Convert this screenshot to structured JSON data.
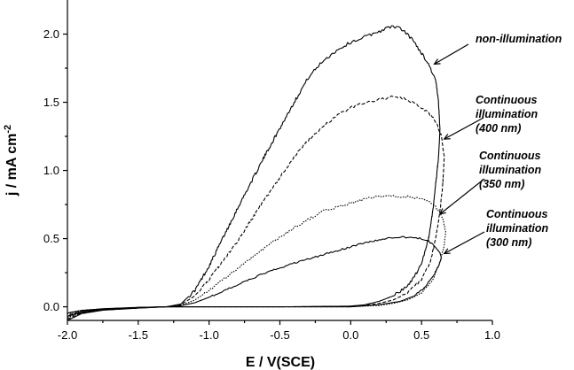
{
  "chart_data": {
    "type": "line",
    "title": "",
    "xlabel": "E / V(SCE)",
    "ylabel": "j / mA cm",
    "ylabel_superscript": "-2",
    "xlim": [
      -2.0,
      1.0
    ],
    "ylim": [
      -0.1,
      2.25
    ],
    "x_ticks": [
      -2.0,
      -1.5,
      -1.0,
      -0.5,
      0.0,
      0.5,
      1.0
    ],
    "x_tick_labels": [
      "-2.0",
      "-1.5",
      "-1.0",
      "-0.5",
      "0.0",
      "0.5",
      "1.0"
    ],
    "y_ticks": [
      0.0,
      0.5,
      1.0,
      1.5,
      2.0
    ],
    "y_tick_labels": [
      "0.0",
      "0.5",
      "1.0",
      "1.5",
      "2.0"
    ],
    "grid": false,
    "series": [
      {
        "name": "non-illumination",
        "dash": "solid",
        "noise": 0.012,
        "points": [
          [
            -2.0,
            -0.1
          ],
          [
            -1.9,
            -0.05
          ],
          [
            -1.75,
            -0.025
          ],
          [
            -1.5,
            -0.01
          ],
          [
            -1.3,
            0.0
          ],
          [
            -1.2,
            0.02
          ],
          [
            -1.1,
            0.12
          ],
          [
            -1.0,
            0.3
          ],
          [
            -0.8,
            0.72
          ],
          [
            -0.6,
            1.12
          ],
          [
            -0.4,
            1.5
          ],
          [
            -0.3,
            1.68
          ],
          [
            -0.2,
            1.8
          ],
          [
            -0.1,
            1.88
          ],
          [
            0.0,
            1.94
          ],
          [
            0.1,
            1.98
          ],
          [
            0.2,
            2.02
          ],
          [
            0.3,
            2.06
          ],
          [
            0.35,
            2.04
          ],
          [
            0.4,
            2.0
          ],
          [
            0.45,
            1.94
          ],
          [
            0.5,
            1.86
          ],
          [
            0.55,
            1.78
          ],
          [
            0.6,
            1.66
          ],
          [
            0.62,
            1.5
          ],
          [
            0.63,
            1.3
          ],
          [
            0.62,
            1.1
          ],
          [
            0.6,
            0.9
          ],
          [
            0.58,
            0.7
          ],
          [
            0.55,
            0.5
          ],
          [
            0.5,
            0.32
          ],
          [
            0.45,
            0.22
          ],
          [
            0.4,
            0.15
          ],
          [
            0.3,
            0.08
          ],
          [
            0.2,
            0.04
          ],
          [
            0.1,
            0.015
          ],
          [
            0.0,
            0.005
          ],
          [
            -0.5,
            0.0
          ],
          [
            -1.0,
            0.0
          ],
          [
            -1.3,
            0.0
          ],
          [
            -1.5,
            -0.005
          ],
          [
            -1.75,
            -0.02
          ],
          [
            -1.9,
            -0.04
          ],
          [
            -2.0,
            -0.07
          ]
        ]
      },
      {
        "name": "Continuous illumination (400 nm)",
        "dash": "4,2",
        "noise": 0.01,
        "points": [
          [
            -2.0,
            -0.09
          ],
          [
            -1.9,
            -0.045
          ],
          [
            -1.75,
            -0.022
          ],
          [
            -1.5,
            -0.008
          ],
          [
            -1.3,
            0.0
          ],
          [
            -1.2,
            0.015
          ],
          [
            -1.1,
            0.08
          ],
          [
            -1.0,
            0.2
          ],
          [
            -0.8,
            0.48
          ],
          [
            -0.6,
            0.8
          ],
          [
            -0.4,
            1.1
          ],
          [
            -0.3,
            1.22
          ],
          [
            -0.2,
            1.32
          ],
          [
            -0.1,
            1.4
          ],
          [
            0.0,
            1.46
          ],
          [
            0.1,
            1.5
          ],
          [
            0.2,
            1.52
          ],
          [
            0.3,
            1.54
          ],
          [
            0.4,
            1.52
          ],
          [
            0.5,
            1.46
          ],
          [
            0.55,
            1.42
          ],
          [
            0.6,
            1.36
          ],
          [
            0.64,
            1.25
          ],
          [
            0.66,
            1.1
          ],
          [
            0.65,
            0.9
          ],
          [
            0.63,
            0.7
          ],
          [
            0.6,
            0.5
          ],
          [
            0.56,
            0.32
          ],
          [
            0.5,
            0.2
          ],
          [
            0.4,
            0.1
          ],
          [
            0.3,
            0.05
          ],
          [
            0.2,
            0.025
          ],
          [
            0.1,
            0.01
          ],
          [
            0.0,
            0.0
          ],
          [
            -0.5,
            0.0
          ],
          [
            -1.0,
            0.0
          ],
          [
            -1.3,
            0.0
          ],
          [
            -1.5,
            -0.005
          ],
          [
            -1.75,
            -0.018
          ],
          [
            -1.9,
            -0.035
          ],
          [
            -2.0,
            -0.06
          ]
        ]
      },
      {
        "name": "Continuous illumination (350 nm)",
        "dash": "1.5,1.5",
        "noise": 0.008,
        "points": [
          [
            -2.0,
            -0.08
          ],
          [
            -1.9,
            -0.04
          ],
          [
            -1.75,
            -0.02
          ],
          [
            -1.5,
            -0.007
          ],
          [
            -1.3,
            0.0
          ],
          [
            -1.2,
            0.01
          ],
          [
            -1.1,
            0.05
          ],
          [
            -1.0,
            0.12
          ],
          [
            -0.8,
            0.28
          ],
          [
            -0.6,
            0.44
          ],
          [
            -0.4,
            0.58
          ],
          [
            -0.2,
            0.7
          ],
          [
            0.0,
            0.76
          ],
          [
            0.1,
            0.79
          ],
          [
            0.2,
            0.81
          ],
          [
            0.3,
            0.81
          ],
          [
            0.4,
            0.81
          ],
          [
            0.5,
            0.79
          ],
          [
            0.55,
            0.77
          ],
          [
            0.6,
            0.73
          ],
          [
            0.65,
            0.65
          ],
          [
            0.67,
            0.55
          ],
          [
            0.66,
            0.45
          ],
          [
            0.63,
            0.33
          ],
          [
            0.58,
            0.2
          ],
          [
            0.5,
            0.1
          ],
          [
            0.4,
            0.05
          ],
          [
            0.3,
            0.025
          ],
          [
            0.2,
            0.01
          ],
          [
            0.0,
            0.0
          ],
          [
            -0.5,
            0.0
          ],
          [
            -1.0,
            0.0
          ],
          [
            -1.3,
            0.0
          ],
          [
            -1.5,
            -0.005
          ],
          [
            -1.75,
            -0.016
          ],
          [
            -1.9,
            -0.03
          ],
          [
            -2.0,
            -0.05
          ]
        ]
      },
      {
        "name": "Continuous illumination (300 nm)",
        "dash": "solid",
        "noise": 0.006,
        "points": [
          [
            -2.0,
            -0.07
          ],
          [
            -1.9,
            -0.035
          ],
          [
            -1.75,
            -0.018
          ],
          [
            -1.5,
            -0.006
          ],
          [
            -1.3,
            0.0
          ],
          [
            -1.2,
            0.008
          ],
          [
            -1.1,
            0.03
          ],
          [
            -1.0,
            0.07
          ],
          [
            -0.8,
            0.16
          ],
          [
            -0.6,
            0.25
          ],
          [
            -0.4,
            0.32
          ],
          [
            -0.2,
            0.38
          ],
          [
            0.0,
            0.44
          ],
          [
            0.1,
            0.47
          ],
          [
            0.2,
            0.49
          ],
          [
            0.3,
            0.51
          ],
          [
            0.4,
            0.51
          ],
          [
            0.5,
            0.5
          ],
          [
            0.55,
            0.48
          ],
          [
            0.6,
            0.44
          ],
          [
            0.63,
            0.4
          ],
          [
            0.64,
            0.36
          ],
          [
            0.62,
            0.3
          ],
          [
            0.58,
            0.22
          ],
          [
            0.52,
            0.14
          ],
          [
            0.45,
            0.08
          ],
          [
            0.35,
            0.04
          ],
          [
            0.2,
            0.015
          ],
          [
            0.0,
            0.0
          ],
          [
            -0.5,
            0.0
          ],
          [
            -1.0,
            0.0
          ],
          [
            -1.3,
            0.0
          ],
          [
            -1.5,
            -0.004
          ],
          [
            -1.75,
            -0.014
          ],
          [
            -1.9,
            -0.026
          ],
          [
            -2.0,
            -0.045
          ]
        ]
      }
    ],
    "annotations": [
      {
        "lines": [
          "non-illumination"
        ],
        "target": [
          0.59,
          1.78
        ]
      },
      {
        "lines": [
          "Continuous",
          "illumination",
          "(400 nm)"
        ],
        "target": [
          0.66,
          1.23
        ]
      },
      {
        "lines": [
          "Continuous",
          "illumination",
          "(350 nm)"
        ],
        "target": [
          0.63,
          0.68
        ]
      },
      {
        "lines": [
          "Continuous",
          "illumination",
          "(300 nm)"
        ],
        "target": [
          0.66,
          0.39
        ]
      }
    ]
  }
}
